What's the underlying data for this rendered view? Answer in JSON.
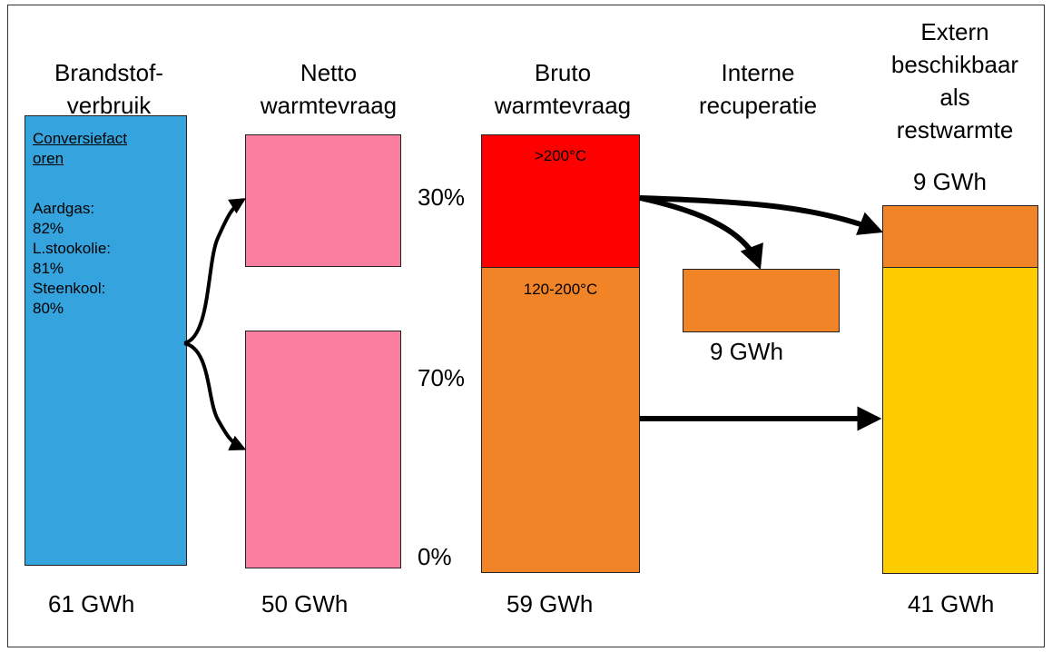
{
  "columns": {
    "fuel": {
      "header": [
        "Brandstof-",
        "verbruik"
      ],
      "total": "61 GWh",
      "color": "#34a3de"
    },
    "net": {
      "header": [
        "Netto",
        "warmtevraag"
      ],
      "total": "50 GWh",
      "color": "#fb7ea1"
    },
    "gross": {
      "header": [
        "Bruto",
        "warmtevraag"
      ],
      "total": "59 GWh"
    },
    "internal": {
      "header": [
        "Interne",
        "recuperatie"
      ],
      "total": "9 GWh",
      "color": "#f18426"
    },
    "external": {
      "header": [
        "Extern",
        "beschikbaar",
        "als",
        "restwarmte"
      ],
      "top_total": "9 GWh",
      "total": "41 GWh"
    }
  },
  "conversion": {
    "title_line1": "Conversiefact",
    "title_line2": "oren",
    "lines": [
      "Aardgas:",
      "82%",
      "L.stookolie:",
      "81%",
      "Steenkool:",
      "80%"
    ]
  },
  "gross_segments": {
    "high": {
      "label": ">200°C",
      "color": "#ff0000"
    },
    "mid": {
      "label": "120-200°C",
      "color": "#f18426"
    }
  },
  "external_segments": {
    "top_color": "#f18426",
    "bottom_color": "#ffcc00"
  },
  "scale": {
    "p30": "30%",
    "p70": "70%",
    "p0": "0%"
  }
}
